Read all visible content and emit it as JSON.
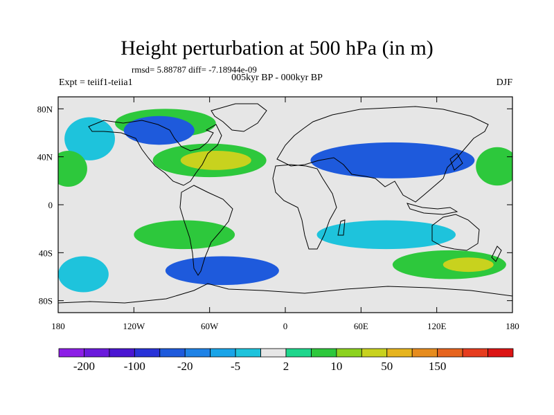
{
  "title": "Height perturbation at 500 hPa (in m)",
  "stats": "rmsd= 5.88787 diff= -7.18944e-09",
  "left_label": "Expt = teiif1-teiia1",
  "center_label": "005kyr BP - 000kyr BP",
  "right_label": "DJF",
  "axes": {
    "x_ticks": [
      {
        "lon": -180,
        "label": "180"
      },
      {
        "lon": -120,
        "label": "120W"
      },
      {
        "lon": -60,
        "label": "60W"
      },
      {
        "lon": 0,
        "label": "0"
      },
      {
        "lon": 60,
        "label": "60E"
      },
      {
        "lon": 120,
        "label": "120E"
      },
      {
        "lon": 180,
        "label": "180"
      }
    ],
    "y_ticks": [
      {
        "lat": 80,
        "label": "80N"
      },
      {
        "lat": 40,
        "label": "40N"
      },
      {
        "lat": 0,
        "label": "0"
      },
      {
        "lat": -40,
        "label": "40S"
      },
      {
        "lat": -80,
        "label": "80S"
      }
    ],
    "lon_range": [
      -180,
      180
    ],
    "lat_range": [
      -90,
      90
    ]
  },
  "colorbar": {
    "colors": [
      "#8c1ee6",
      "#6a19dc",
      "#4a16d2",
      "#2832d8",
      "#1e5adc",
      "#1e82e6",
      "#19a4e8",
      "#1ec3dc",
      "#e6e6e6",
      "#1ed68c",
      "#2dc83c",
      "#8cd21e",
      "#c8d21e",
      "#e6b41e",
      "#e68c1e",
      "#e6641e",
      "#e63c1e",
      "#dc1414"
    ],
    "labels": [
      {
        "after_box": 1,
        "text": "-200"
      },
      {
        "after_box": 3,
        "text": "-100"
      },
      {
        "after_box": 5,
        "text": "-20"
      },
      {
        "after_box": 7,
        "text": "-5"
      },
      {
        "after_box": 9,
        "text": "2"
      },
      {
        "after_box": 11,
        "text": "10"
      },
      {
        "after_box": 13,
        "text": "50"
      },
      {
        "after_box": 15,
        "text": "150"
      }
    ]
  },
  "regions": [
    {
      "level": "10",
      "color": "#2dc83c",
      "lon": -95,
      "lat": 68,
      "rlon": 40,
      "rlat": 12
    },
    {
      "level": "-20",
      "color": "#1e5adc",
      "lon": -100,
      "lat": 62,
      "rlon": 28,
      "rlat": 12
    },
    {
      "level": "-5",
      "color": "#1ec3dc",
      "lon": -155,
      "lat": 55,
      "rlon": 20,
      "rlat": 18
    },
    {
      "level": "10",
      "color": "#2dc83c",
      "lon": -60,
      "lat": 37,
      "rlon": 45,
      "rlat": 14
    },
    {
      "level": "50",
      "color": "#c8d21e",
      "lon": -55,
      "lat": 37,
      "rlon": 28,
      "rlat": 8
    },
    {
      "level": "10",
      "color": "#2dc83c",
      "lon": -172,
      "lat": 30,
      "rlon": 15,
      "rlat": 15
    },
    {
      "level": "10",
      "color": "#2dc83c",
      "lon": 168,
      "lat": 32,
      "rlon": 17,
      "rlat": 16
    },
    {
      "level": "-20",
      "color": "#1e5adc",
      "lon": 85,
      "lat": 37,
      "rlon": 65,
      "rlat": 15
    },
    {
      "level": "-5",
      "color": "#1ec3dc",
      "lon": 80,
      "lat": -25,
      "rlon": 55,
      "rlat": 12
    },
    {
      "level": "10",
      "color": "#2dc83c",
      "lon": -80,
      "lat": -25,
      "rlon": 40,
      "rlat": 12
    },
    {
      "level": "-20",
      "color": "#1e5adc",
      "lon": -50,
      "lat": -55,
      "rlon": 45,
      "rlat": 12
    },
    {
      "level": "-5",
      "color": "#1ec3dc",
      "lon": -160,
      "lat": -58,
      "rlon": 20,
      "rlat": 15
    },
    {
      "level": "10",
      "color": "#2dc83c",
      "lon": 130,
      "lat": -50,
      "rlon": 45,
      "rlat": 12
    },
    {
      "level": "50",
      "color": "#c8d21e",
      "lon": 145,
      "lat": -50,
      "rlon": 20,
      "rlat": 6
    }
  ]
}
